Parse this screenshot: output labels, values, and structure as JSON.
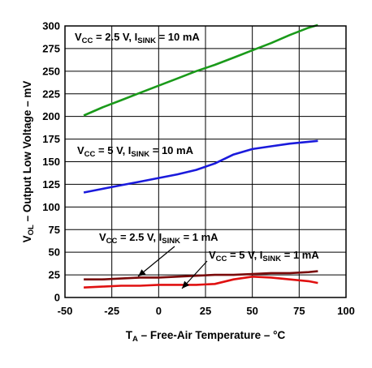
{
  "chart_data": {
    "type": "line",
    "xlabel": {
      "main": "T",
      "sub": "A",
      "rest": " – Free-Air Temperature – °C"
    },
    "ylabel": {
      "main": "V",
      "sub": "OL",
      "rest": " – Output Low Voltage – mV"
    },
    "xlim": [
      -50,
      100
    ],
    "ylim": [
      0,
      300
    ],
    "xticks": [
      -50,
      -25,
      0,
      25,
      50,
      75,
      100
    ],
    "yticks": [
      0,
      25,
      50,
      75,
      100,
      125,
      150,
      175,
      200,
      225,
      250,
      275,
      300
    ],
    "grid": true,
    "series": [
      {
        "id": "vcc25_10ma",
        "color": "#1a9a1a",
        "label": {
          "vcc": "2.5 V",
          "isink": "10 mA"
        },
        "x": [
          -40,
          -30,
          -20,
          -10,
          0,
          10,
          20,
          30,
          40,
          50,
          60,
          70,
          80,
          85
        ],
        "y": [
          201,
          210,
          218,
          226,
          234,
          242,
          250,
          257,
          265,
          273,
          281,
          290,
          298,
          301
        ]
      },
      {
        "id": "vcc5_10ma",
        "color": "#1a1adc",
        "label": {
          "vcc": "5 V",
          "isink": "10 mA"
        },
        "x": [
          -40,
          -30,
          -20,
          -10,
          0,
          10,
          20,
          30,
          40,
          50,
          60,
          70,
          80,
          85
        ],
        "y": [
          116,
          120,
          124,
          128,
          132,
          136,
          141,
          148,
          158,
          164,
          167,
          170,
          172,
          173
        ]
      },
      {
        "id": "vcc25_1ma",
        "color": "#7a0a0a",
        "label": {
          "vcc": "2.5 V",
          "isink": "1 mA"
        },
        "x": [
          -40,
          -30,
          -20,
          -10,
          0,
          10,
          20,
          30,
          40,
          50,
          60,
          70,
          80,
          85
        ],
        "y": [
          20,
          20,
          21,
          22,
          22,
          23,
          24,
          25,
          25,
          26,
          27,
          27,
          28,
          29
        ]
      },
      {
        "id": "vcc5_1ma",
        "color": "#e01010",
        "label": {
          "vcc": "5 V",
          "isink": "1 mA"
        },
        "x": [
          -40,
          -30,
          -20,
          -10,
          0,
          10,
          20,
          30,
          40,
          50,
          60,
          70,
          80,
          85
        ],
        "y": [
          11,
          12,
          13,
          13,
          14,
          14,
          14,
          15,
          20,
          23,
          22,
          20,
          18,
          16
        ]
      }
    ]
  }
}
